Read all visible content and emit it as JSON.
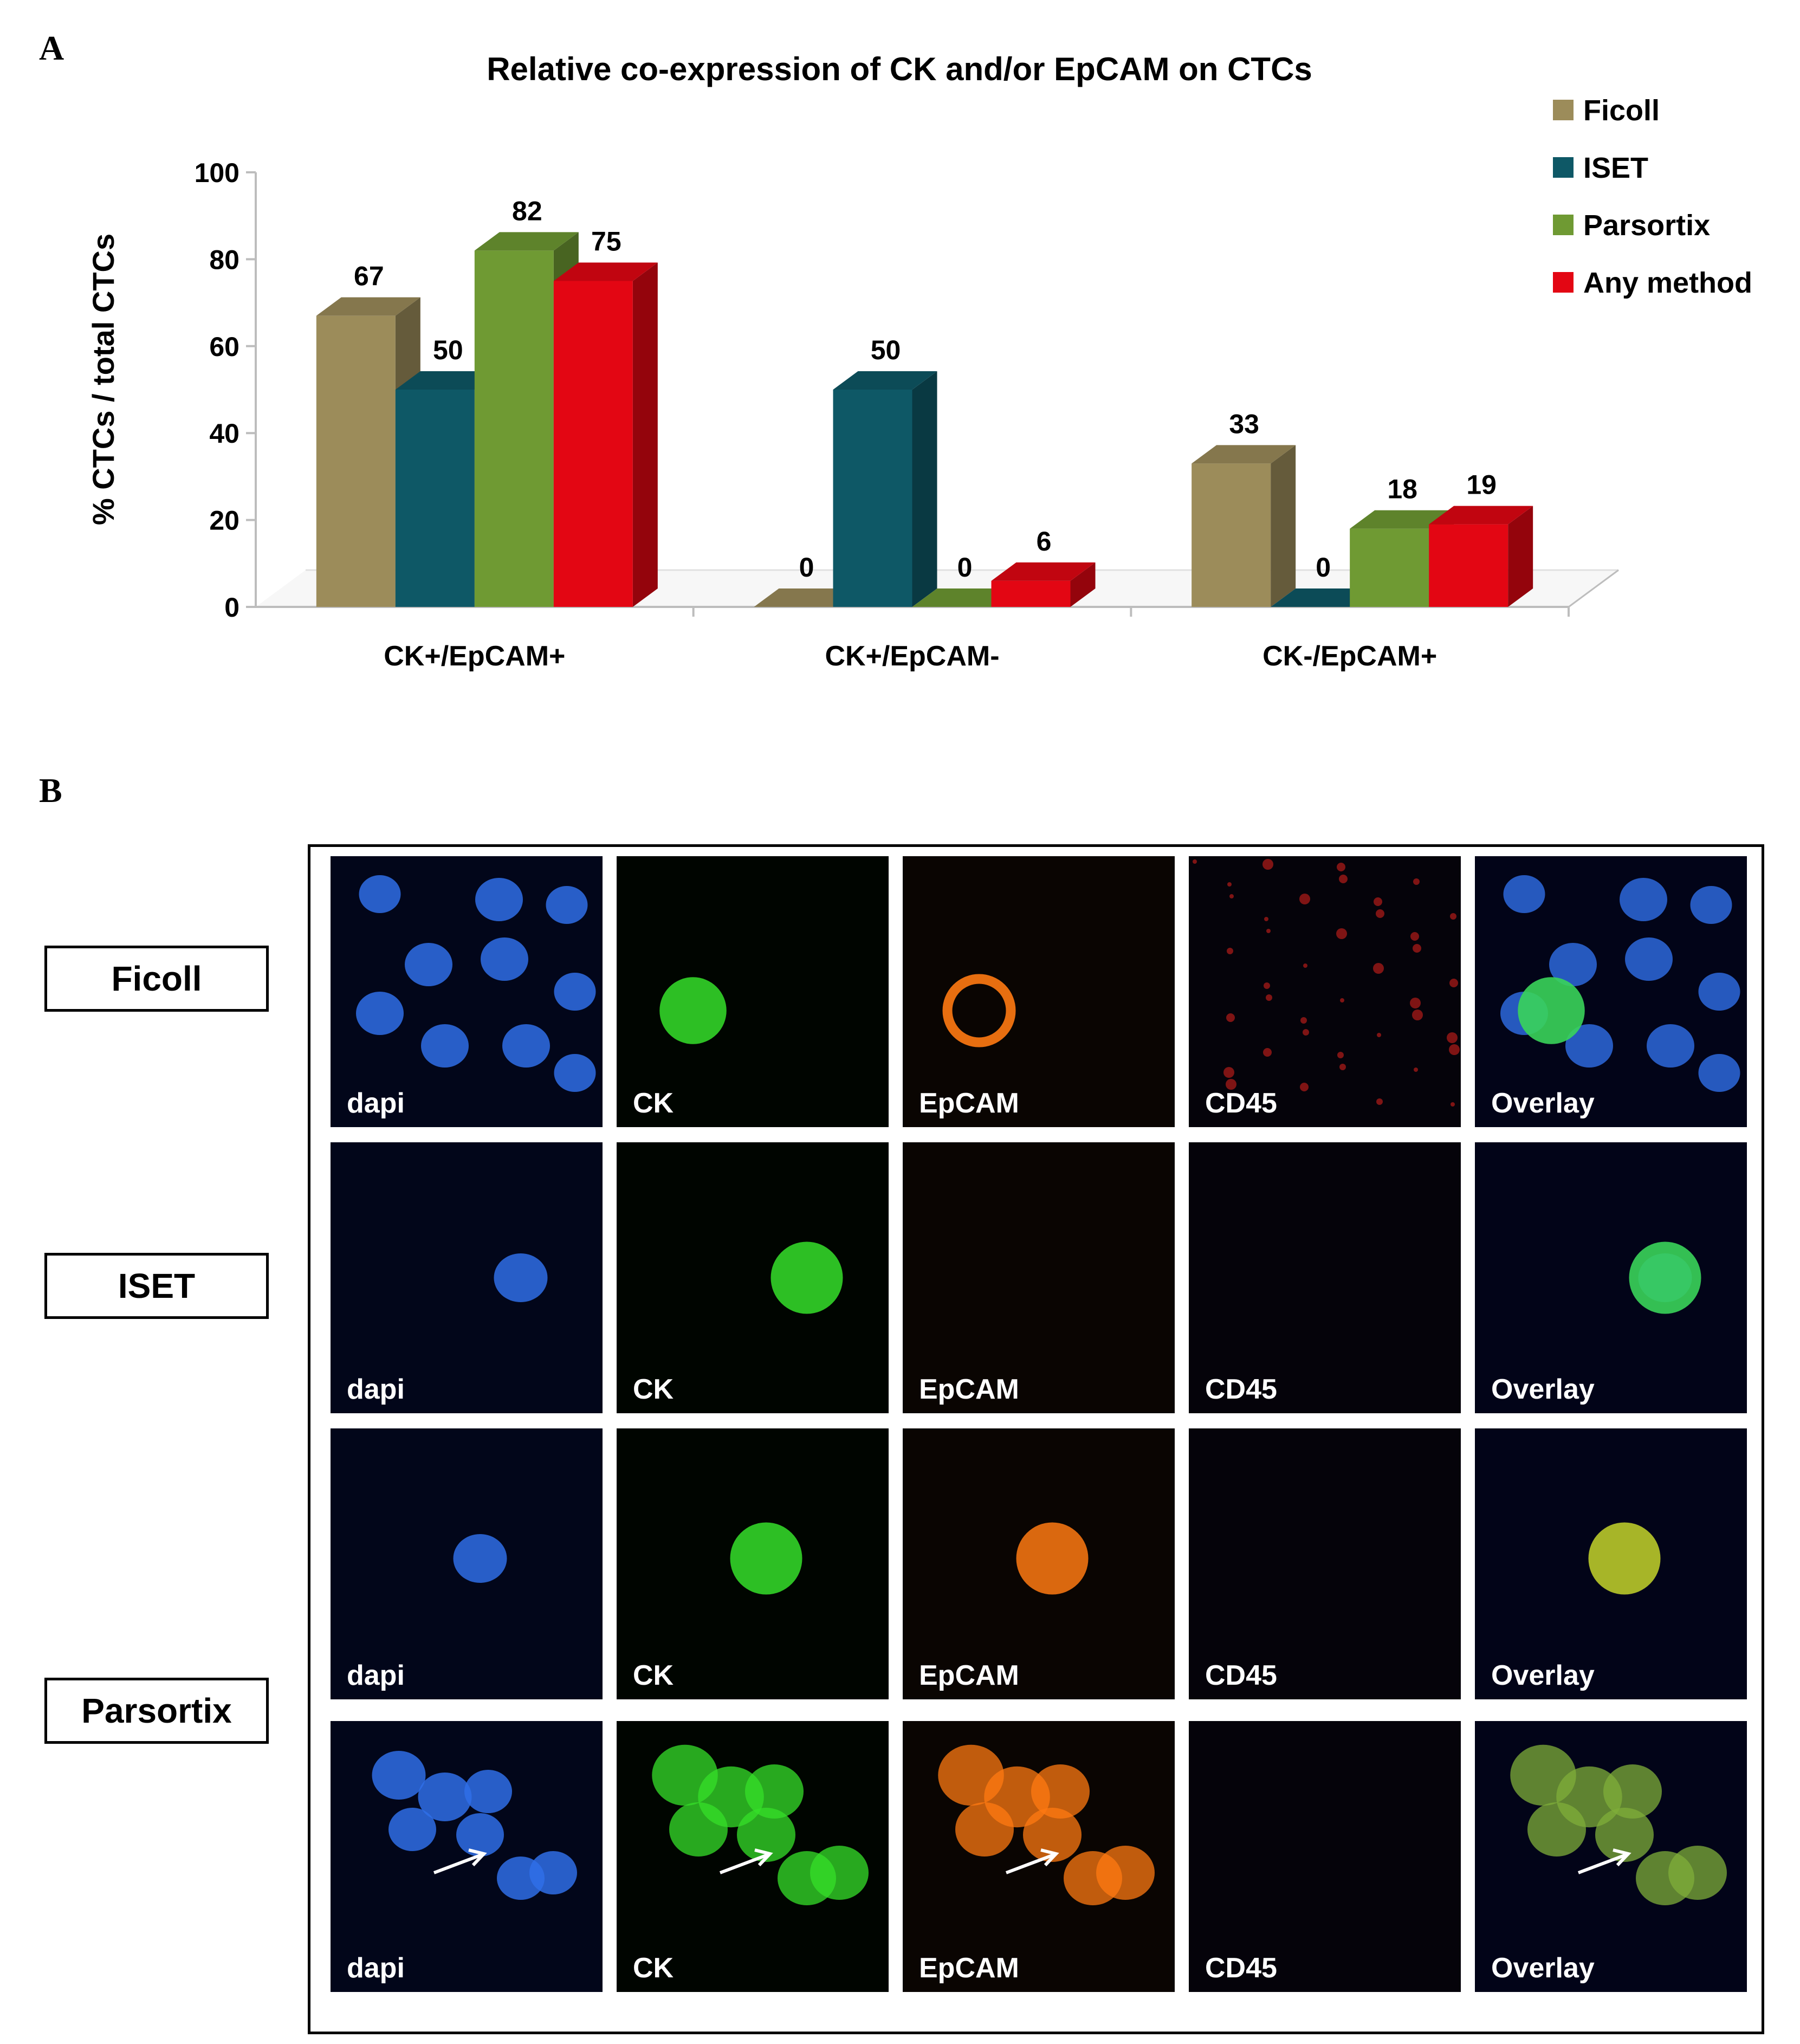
{
  "panel_a_letter": "A",
  "panel_b_letter": "B",
  "colors": {
    "Ficoll": "#9c8c5a",
    "ISET": "#0e5866",
    "Parsortix": "#6f9a33",
    "Any method": "#e30613"
  },
  "chart_data": {
    "type": "bar",
    "title": "Relative co-expression of CK and/or EpCAM on CTCs",
    "xlabel": "",
    "ylabel": "% CTCs / total CTCs",
    "ylim": [
      0,
      100
    ],
    "yticks": [
      "0",
      "20",
      "40",
      "60",
      "80",
      "100"
    ],
    "categories": [
      "CK+/EpCAM+",
      "CK+/EpCAM-",
      "CK-/EpCAM+"
    ],
    "series": [
      {
        "name": "Ficoll",
        "values": [
          67,
          0,
          33
        ],
        "labels": [
          "67",
          "0",
          "33"
        ]
      },
      {
        "name": "ISET",
        "values": [
          50,
          50,
          0
        ],
        "labels": [
          "50",
          "50",
          "0"
        ]
      },
      {
        "name": "Parsortix",
        "values": [
          82,
          0,
          18
        ],
        "labels": [
          "82",
          "0",
          "18"
        ]
      },
      {
        "name": "Any method",
        "values": [
          75,
          6,
          19
        ],
        "labels": [
          "75",
          "6",
          "19"
        ]
      }
    ],
    "legend": "top-right",
    "grid": false,
    "style": "3d"
  },
  "panel_b": {
    "row_labels": [
      "Ficoll",
      "ISET",
      "Parsortix"
    ],
    "channels": [
      "dapi",
      "CK",
      "EpCAM",
      "CD45",
      "Overlay"
    ]
  }
}
